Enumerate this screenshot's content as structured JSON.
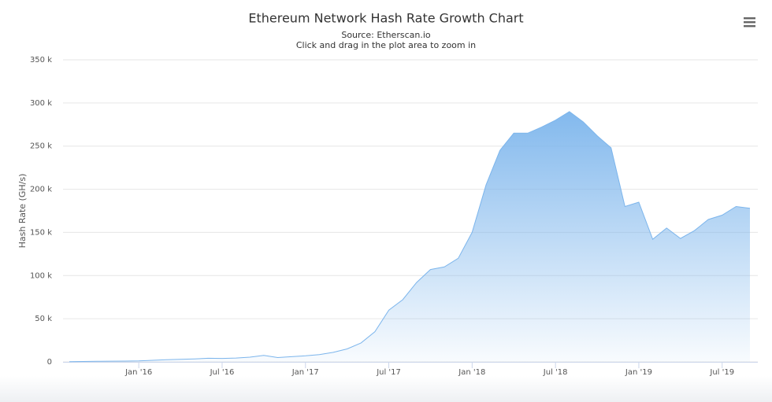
{
  "chart_data": {
    "type": "area",
    "title": "Ethereum Network Hash Rate Growth Chart",
    "subtitle": "Source: Etherscan.io",
    "note": "Click and drag in the plot area to zoom in",
    "y_label": "Hash Rate (GH/s)",
    "x": [
      "2015-08",
      "2015-09",
      "2015-10",
      "2015-11",
      "2015-12",
      "2016-01",
      "2016-02",
      "2016-03",
      "2016-04",
      "2016-05",
      "2016-06",
      "2016-07",
      "2016-08",
      "2016-09",
      "2016-10",
      "2016-11",
      "2016-12",
      "2017-01",
      "2017-02",
      "2017-03",
      "2017-04",
      "2017-05",
      "2017-06",
      "2017-07",
      "2017-08",
      "2017-09",
      "2017-10",
      "2017-11",
      "2017-12",
      "2018-01",
      "2018-02",
      "2018-03",
      "2018-04",
      "2018-05",
      "2018-06",
      "2018-07",
      "2018-08",
      "2018-09",
      "2018-10",
      "2018-11",
      "2018-12",
      "2019-01",
      "2019-02",
      "2019-03",
      "2019-04",
      "2019-05",
      "2019-06",
      "2019-07",
      "2019-08",
      "2019-09"
    ],
    "series": [
      {
        "name": "Hash Rate",
        "color": "#7cb5ec",
        "values": [
          200,
          500,
          600,
          800,
          900,
          1200,
          1800,
          2500,
          3000,
          3500,
          4200,
          4000,
          4500,
          5500,
          7500,
          5000,
          6000,
          7000,
          8500,
          11000,
          15000,
          22000,
          35000,
          60000,
          72000,
          92000,
          107000,
          110000,
          120000,
          150000,
          205000,
          245000,
          265000,
          265000,
          272000,
          280000,
          290000,
          278000,
          262000,
          248000,
          180000,
          185000,
          142000,
          155000,
          143000,
          152000,
          165000,
          170000,
          180000,
          178000
        ]
      }
    ],
    "xlim": [
      "2015-08",
      "2019-09"
    ],
    "xticks": [
      {
        "value": "2016-01",
        "label": "Jan '16"
      },
      {
        "value": "2016-07",
        "label": "Jul '16"
      },
      {
        "value": "2017-01",
        "label": "Jan '17"
      },
      {
        "value": "2017-07",
        "label": "Jul '17"
      },
      {
        "value": "2018-01",
        "label": "Jan '18"
      },
      {
        "value": "2018-07",
        "label": "Jul '18"
      },
      {
        "value": "2019-01",
        "label": "Jan '19"
      },
      {
        "value": "2019-07",
        "label": "Jul '19"
      }
    ],
    "ylim": [
      0,
      350000
    ],
    "yticks": [
      0,
      {
        "value": 50000,
        "label": "50 k"
      },
      {
        "value": 100000,
        "label": "100 k"
      },
      {
        "value": 150000,
        "label": "150 k"
      },
      {
        "value": 200000,
        "label": "200 k"
      },
      {
        "value": 250000,
        "label": "250 k"
      },
      {
        "value": 300000,
        "label": "300 k"
      },
      {
        "value": 350000,
        "label": "350 k"
      }
    ],
    "grid": true
  }
}
